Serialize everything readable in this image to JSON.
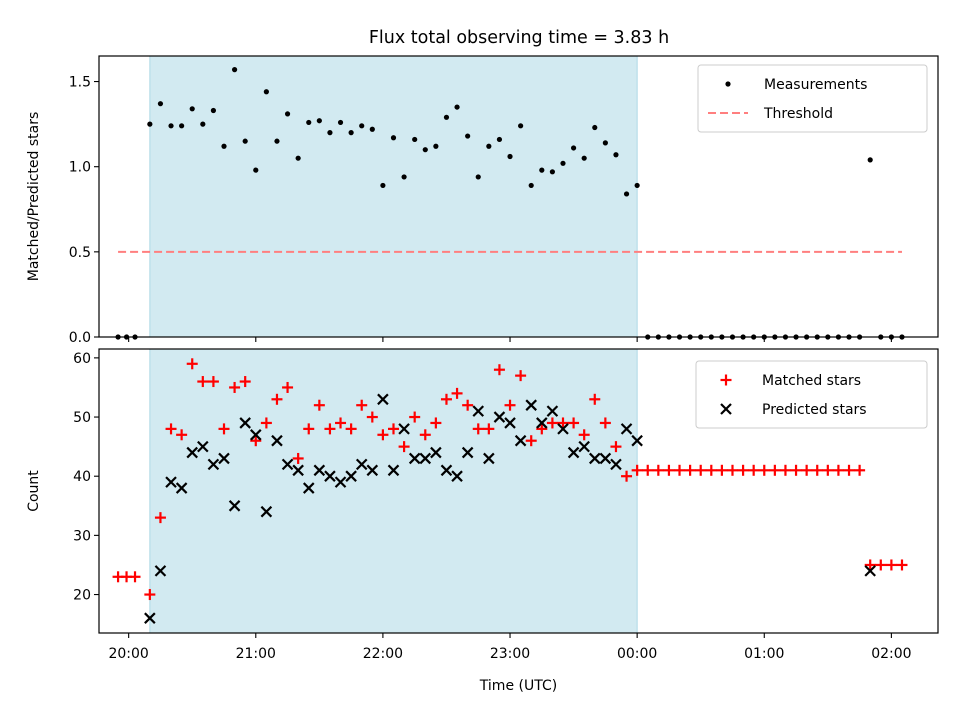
{
  "title": "Flux total observing time = 3.83 h",
  "colors": {
    "band": "#add8e6",
    "measure": "#000000",
    "threshold": "#ff7f7f",
    "matched": "#ff0000",
    "predicted": "#000000"
  },
  "chart_data": [
    {
      "type": "scatter",
      "ylabel": "Matched/Predicted stars",
      "xlabel": "",
      "xlim": [
        "19:46",
        "02:22"
      ],
      "ylim": [
        0,
        1.65
      ],
      "yticks": [
        0.0,
        0.5,
        1.0,
        1.5
      ],
      "ytick_labels": [
        "0.0",
        "0.5",
        "1.0",
        "1.5"
      ],
      "legend_position": "top-right",
      "highlight_span": [
        "20:10",
        "00:00"
      ],
      "series": [
        {
          "name": "Measurements",
          "x": [
            "19:55",
            "19:59",
            "20:03",
            "20:10",
            "20:15",
            "20:20",
            "20:25",
            "20:30",
            "20:35",
            "20:40",
            "20:45",
            "20:50",
            "20:55",
            "21:00",
            "21:05",
            "21:10",
            "21:15",
            "21:20",
            "21:25",
            "21:30",
            "21:35",
            "21:40",
            "21:45",
            "21:50",
            "21:55",
            "22:00",
            "22:05",
            "22:10",
            "22:15",
            "22:20",
            "22:25",
            "22:30",
            "22:35",
            "22:40",
            "22:45",
            "22:50",
            "22:55",
            "23:00",
            "23:05",
            "23:10",
            "23:15",
            "23:20",
            "23:25",
            "23:30",
            "23:35",
            "23:40",
            "23:45",
            "23:50",
            "23:55",
            "00:00",
            "00:05",
            "00:10",
            "00:15",
            "00:20",
            "00:25",
            "00:30",
            "00:35",
            "00:40",
            "00:45",
            "00:50",
            "00:55",
            "01:00",
            "01:05",
            "01:10",
            "01:15",
            "01:20",
            "01:25",
            "01:30",
            "01:35",
            "01:40",
            "01:45",
            "01:50",
            "01:55",
            "02:00",
            "02:05"
          ],
          "y": [
            0,
            0,
            0,
            1.25,
            1.37,
            1.24,
            1.24,
            1.34,
            1.25,
            1.33,
            1.12,
            1.57,
            1.15,
            0.98,
            1.44,
            1.15,
            1.31,
            1.05,
            1.26,
            1.27,
            1.2,
            1.26,
            1.2,
            1.24,
            1.22,
            0.89,
            1.17,
            0.94,
            1.16,
            1.1,
            1.12,
            1.29,
            1.35,
            1.18,
            0.94,
            1.12,
            1.16,
            1.06,
            1.24,
            0.89,
            0.98,
            0.97,
            1.02,
            1.11,
            1.05,
            1.23,
            1.14,
            1.07,
            0.84,
            0.89,
            0,
            0,
            0,
            0,
            0,
            0,
            0,
            0,
            0,
            0,
            0,
            0,
            0,
            0,
            0,
            0,
            0,
            0,
            0,
            0,
            0,
            1.04,
            0,
            0,
            0
          ]
        },
        {
          "name": "Threshold",
          "x": [
            "19:55",
            "02:05"
          ],
          "y": [
            0.5,
            0.5
          ]
        }
      ]
    },
    {
      "type": "scatter",
      "ylabel": "Count",
      "xlabel": "Time (UTC)",
      "xlim": [
        "19:46",
        "02:22"
      ],
      "ylim": [
        13.5,
        61.5
      ],
      "yticks": [
        20,
        30,
        40,
        50,
        60
      ],
      "ytick_labels": [
        "20",
        "30",
        "40",
        "50",
        "60"
      ],
      "xticks": [
        "20:00",
        "21:00",
        "22:00",
        "23:00",
        "00:00",
        "01:00",
        "02:00"
      ],
      "legend_position": "top-right",
      "highlight_span": [
        "20:10",
        "00:00"
      ],
      "series": [
        {
          "name": "Matched stars",
          "x": [
            "19:55",
            "19:59",
            "20:03",
            "20:10",
            "20:15",
            "20:20",
            "20:25",
            "20:30",
            "20:35",
            "20:40",
            "20:45",
            "20:50",
            "20:55",
            "21:00",
            "21:05",
            "21:10",
            "21:15",
            "21:20",
            "21:25",
            "21:30",
            "21:35",
            "21:40",
            "21:45",
            "21:50",
            "21:55",
            "22:00",
            "22:05",
            "22:10",
            "22:15",
            "22:20",
            "22:25",
            "22:30",
            "22:35",
            "22:40",
            "22:45",
            "22:50",
            "22:55",
            "23:00",
            "23:05",
            "23:10",
            "23:15",
            "23:20",
            "23:25",
            "23:30",
            "23:35",
            "23:40",
            "23:45",
            "23:50",
            "23:55",
            "00:00",
            "00:05",
            "00:10",
            "00:15",
            "00:20",
            "00:25",
            "00:30",
            "00:35",
            "00:40",
            "00:45",
            "00:50",
            "00:55",
            "01:00",
            "01:05",
            "01:10",
            "01:15",
            "01:20",
            "01:25",
            "01:30",
            "01:35",
            "01:40",
            "01:45",
            "01:50",
            "01:55",
            "02:00",
            "02:05"
          ],
          "y": [
            23,
            23,
            23,
            20,
            33,
            48,
            47,
            59,
            56,
            56,
            48,
            55,
            56,
            46,
            49,
            53,
            55,
            43,
            48,
            52,
            48,
            49,
            48,
            52,
            50,
            47,
            48,
            45,
            50,
            47,
            49,
            53,
            54,
            52,
            48,
            48,
            58,
            52,
            57,
            46,
            48,
            49,
            49,
            49,
            47,
            53,
            49,
            45,
            40,
            41,
            41,
            41,
            41,
            41,
            41,
            41,
            41,
            41,
            41,
            41,
            41,
            41,
            41,
            41,
            41,
            41,
            41,
            41,
            41,
            41,
            41,
            25,
            25,
            25,
            25
          ]
        },
        {
          "name": "Predicted stars",
          "x": [
            "20:10",
            "20:15",
            "20:20",
            "20:25",
            "20:30",
            "20:35",
            "20:40",
            "20:45",
            "20:50",
            "20:55",
            "21:00",
            "21:05",
            "21:10",
            "21:15",
            "21:20",
            "21:25",
            "21:30",
            "21:35",
            "21:40",
            "21:45",
            "21:50",
            "21:55",
            "22:00",
            "22:05",
            "22:10",
            "22:15",
            "22:20",
            "22:25",
            "22:30",
            "22:35",
            "22:40",
            "22:45",
            "22:50",
            "22:55",
            "23:00",
            "23:05",
            "23:10",
            "23:15",
            "23:20",
            "23:25",
            "23:30",
            "23:35",
            "23:40",
            "23:45",
            "23:50",
            "23:55",
            "00:00",
            "01:50"
          ],
          "y": [
            16,
            24,
            39,
            38,
            44,
            45,
            42,
            43,
            35,
            49,
            47,
            34,
            46,
            42,
            41,
            38,
            41,
            40,
            39,
            40,
            42,
            41,
            53,
            41,
            48,
            43,
            43,
            44,
            41,
            40,
            44,
            51,
            43,
            50,
            49,
            46,
            52,
            49,
            51,
            48,
            44,
            45,
            43,
            43,
            42,
            48,
            46,
            24
          ]
        }
      ]
    }
  ]
}
